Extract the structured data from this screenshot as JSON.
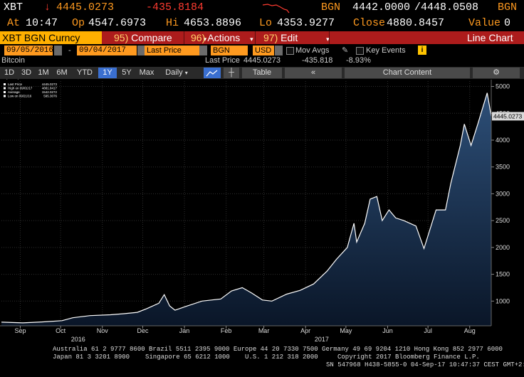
{
  "quote": {
    "ticker": "XBT",
    "arrow": "↓",
    "last": "4445.0273",
    "change": "-435.8184",
    "source": "BGN",
    "bid": "4442.0000",
    "ask": "/4448.0508",
    "source2": "BGN",
    "at_label": "At",
    "at_value": "10:47",
    "op_label": "Op",
    "op_value": "4547.6973",
    "hi_label": "Hi",
    "hi_value": "4653.8896",
    "lo_label": "Lo",
    "lo_value": "4353.9277",
    "close_label": "Close",
    "close_value": "4880.8457",
    "value_label": "Value",
    "value_value": "0"
  },
  "toolbar": {
    "security": "XBT BGN Curncy",
    "compare_num": "95)",
    "compare_label": "Compare",
    "actions_num": "96)",
    "actions_label": "Actions",
    "edit_num": "97)",
    "edit_label": "Edit",
    "view_label": "Line Chart"
  },
  "params": {
    "start_date": "09/05/2016",
    "dash": "-",
    "end_date": "09/04/2017",
    "field": "Last Price",
    "source": "BGN",
    "currency": "USD",
    "mov_avgs": "Mov Avgs",
    "key_events": "Key Events",
    "info": "i"
  },
  "info_row": {
    "security_name": "Bitcoin",
    "last_price_label": "Last Price",
    "last_price": "4445.0273",
    "change": "-435.818",
    "change_pct": "-8.93%"
  },
  "tabs": {
    "periods": [
      "1D",
      "3D",
      "1M",
      "6M",
      "YTD",
      "1Y",
      "5Y",
      "Max"
    ],
    "selected": "1Y",
    "frequency": "Daily",
    "table_label": "Table",
    "chart_content_label": "Chart Content"
  },
  "footer": {
    "line1": "Australia 61 2 9777 8600 Brazil 5511 2395 9000 Europe 44 20 7330 7500 Germany 49 69 9204 1210 Hong Kong 852 2977 6000",
    "line2a": "Japan 81 3 3201 8900",
    "line2b": "Singapore 65 6212 1000",
    "line2c": "U.S. 1 212 318 2000",
    "line2d": "Copyright 2017 Bloomberg Finance L.P.",
    "line3": "SN 547968 H438-5855-0 04-Sep-17 10:47:37 CEST GMT+2:00"
  },
  "colors": {
    "background": "#000000",
    "line": "#ffffff",
    "area_top": "#2d4f78",
    "area_bottom": "#0a1628",
    "accent_orange": "#ff9a1f",
    "bar_red": "#ad1c1c",
    "negative": "#ff3b30"
  },
  "chart_data": {
    "type": "area",
    "title": "",
    "xlabel": "",
    "ylabel": "",
    "security": "Bitcoin",
    "legend": {
      "placement": "top-left",
      "entries": [
        {
          "label": "Last Price",
          "value": "4445.0273"
        },
        {
          "label": "High on 09/01/17",
          "value": "4881.8417"
        },
        {
          "label": "Average",
          "value": "1542.0272"
        },
        {
          "label": "Low on 09/21/16",
          "value": "595.3076"
        }
      ]
    },
    "ylim": [
      540,
      5100
    ],
    "y_ticks": [
      1000,
      1500,
      2000,
      2500,
      3000,
      3500,
      4000,
      4500,
      5000
    ],
    "y_axis_side": "right",
    "x_tick_labels": [
      "Sep",
      "Oct",
      "Nov",
      "Dec",
      "Jan",
      "Feb",
      "Mar",
      "Apr",
      "May",
      "Jun",
      "Jul",
      "Aug"
    ],
    "x_tick_dates": [
      "2016-09-19",
      "2016-10-19",
      "2016-11-19",
      "2016-12-19",
      "2017-01-19",
      "2017-02-19",
      "2017-03-19",
      "2017-04-19",
      "2017-05-19",
      "2017-06-19",
      "2017-07-19",
      "2017-08-19"
    ],
    "year_labels": [
      {
        "label": "2016",
        "date": "2016-11-01"
      },
      {
        "label": "2017",
        "date": "2017-05-01"
      }
    ],
    "x_range": [
      "2016-09-05",
      "2017-09-04"
    ],
    "last_price_tag": "4445.0273",
    "grid": "dotted",
    "series": [
      {
        "x": [
          "2016-09-05",
          "2016-09-21",
          "2016-10-05",
          "2016-10-20",
          "2016-10-28",
          "2016-11-10",
          "2016-11-25",
          "2016-12-05",
          "2016-12-15",
          "2016-12-22",
          "2016-12-31",
          "2017-01-04",
          "2017-01-08",
          "2017-01-12",
          "2017-01-20",
          "2017-02-01",
          "2017-02-15",
          "2017-02-23",
          "2017-03-03",
          "2017-03-10",
          "2017-03-18",
          "2017-03-25",
          "2017-04-05",
          "2017-04-15",
          "2017-04-25",
          "2017-05-05",
          "2017-05-12",
          "2017-05-20",
          "2017-05-25",
          "2017-05-27",
          "2017-06-02",
          "2017-06-06",
          "2017-06-11",
          "2017-06-15",
          "2017-06-20",
          "2017-06-25",
          "2017-07-01",
          "2017-07-10",
          "2017-07-16",
          "2017-07-20",
          "2017-07-25",
          "2017-08-01",
          "2017-08-05",
          "2017-08-12",
          "2017-08-15",
          "2017-08-20",
          "2017-08-25",
          "2017-09-01",
          "2017-09-04"
        ],
        "y": [
          608,
          595,
          612,
          635,
          690,
          730,
          745,
          765,
          790,
          860,
          960,
          1120,
          910,
          830,
          900,
          1000,
          1040,
          1190,
          1250,
          1150,
          1020,
          1000,
          1130,
          1200,
          1320,
          1560,
          1780,
          2000,
          2450,
          2100,
          2450,
          2900,
          2950,
          2500,
          2700,
          2550,
          2500,
          2400,
          1980,
          2300,
          2700,
          2700,
          3200,
          3900,
          4300,
          3900,
          4300,
          4880,
          4445
        ]
      }
    ]
  }
}
